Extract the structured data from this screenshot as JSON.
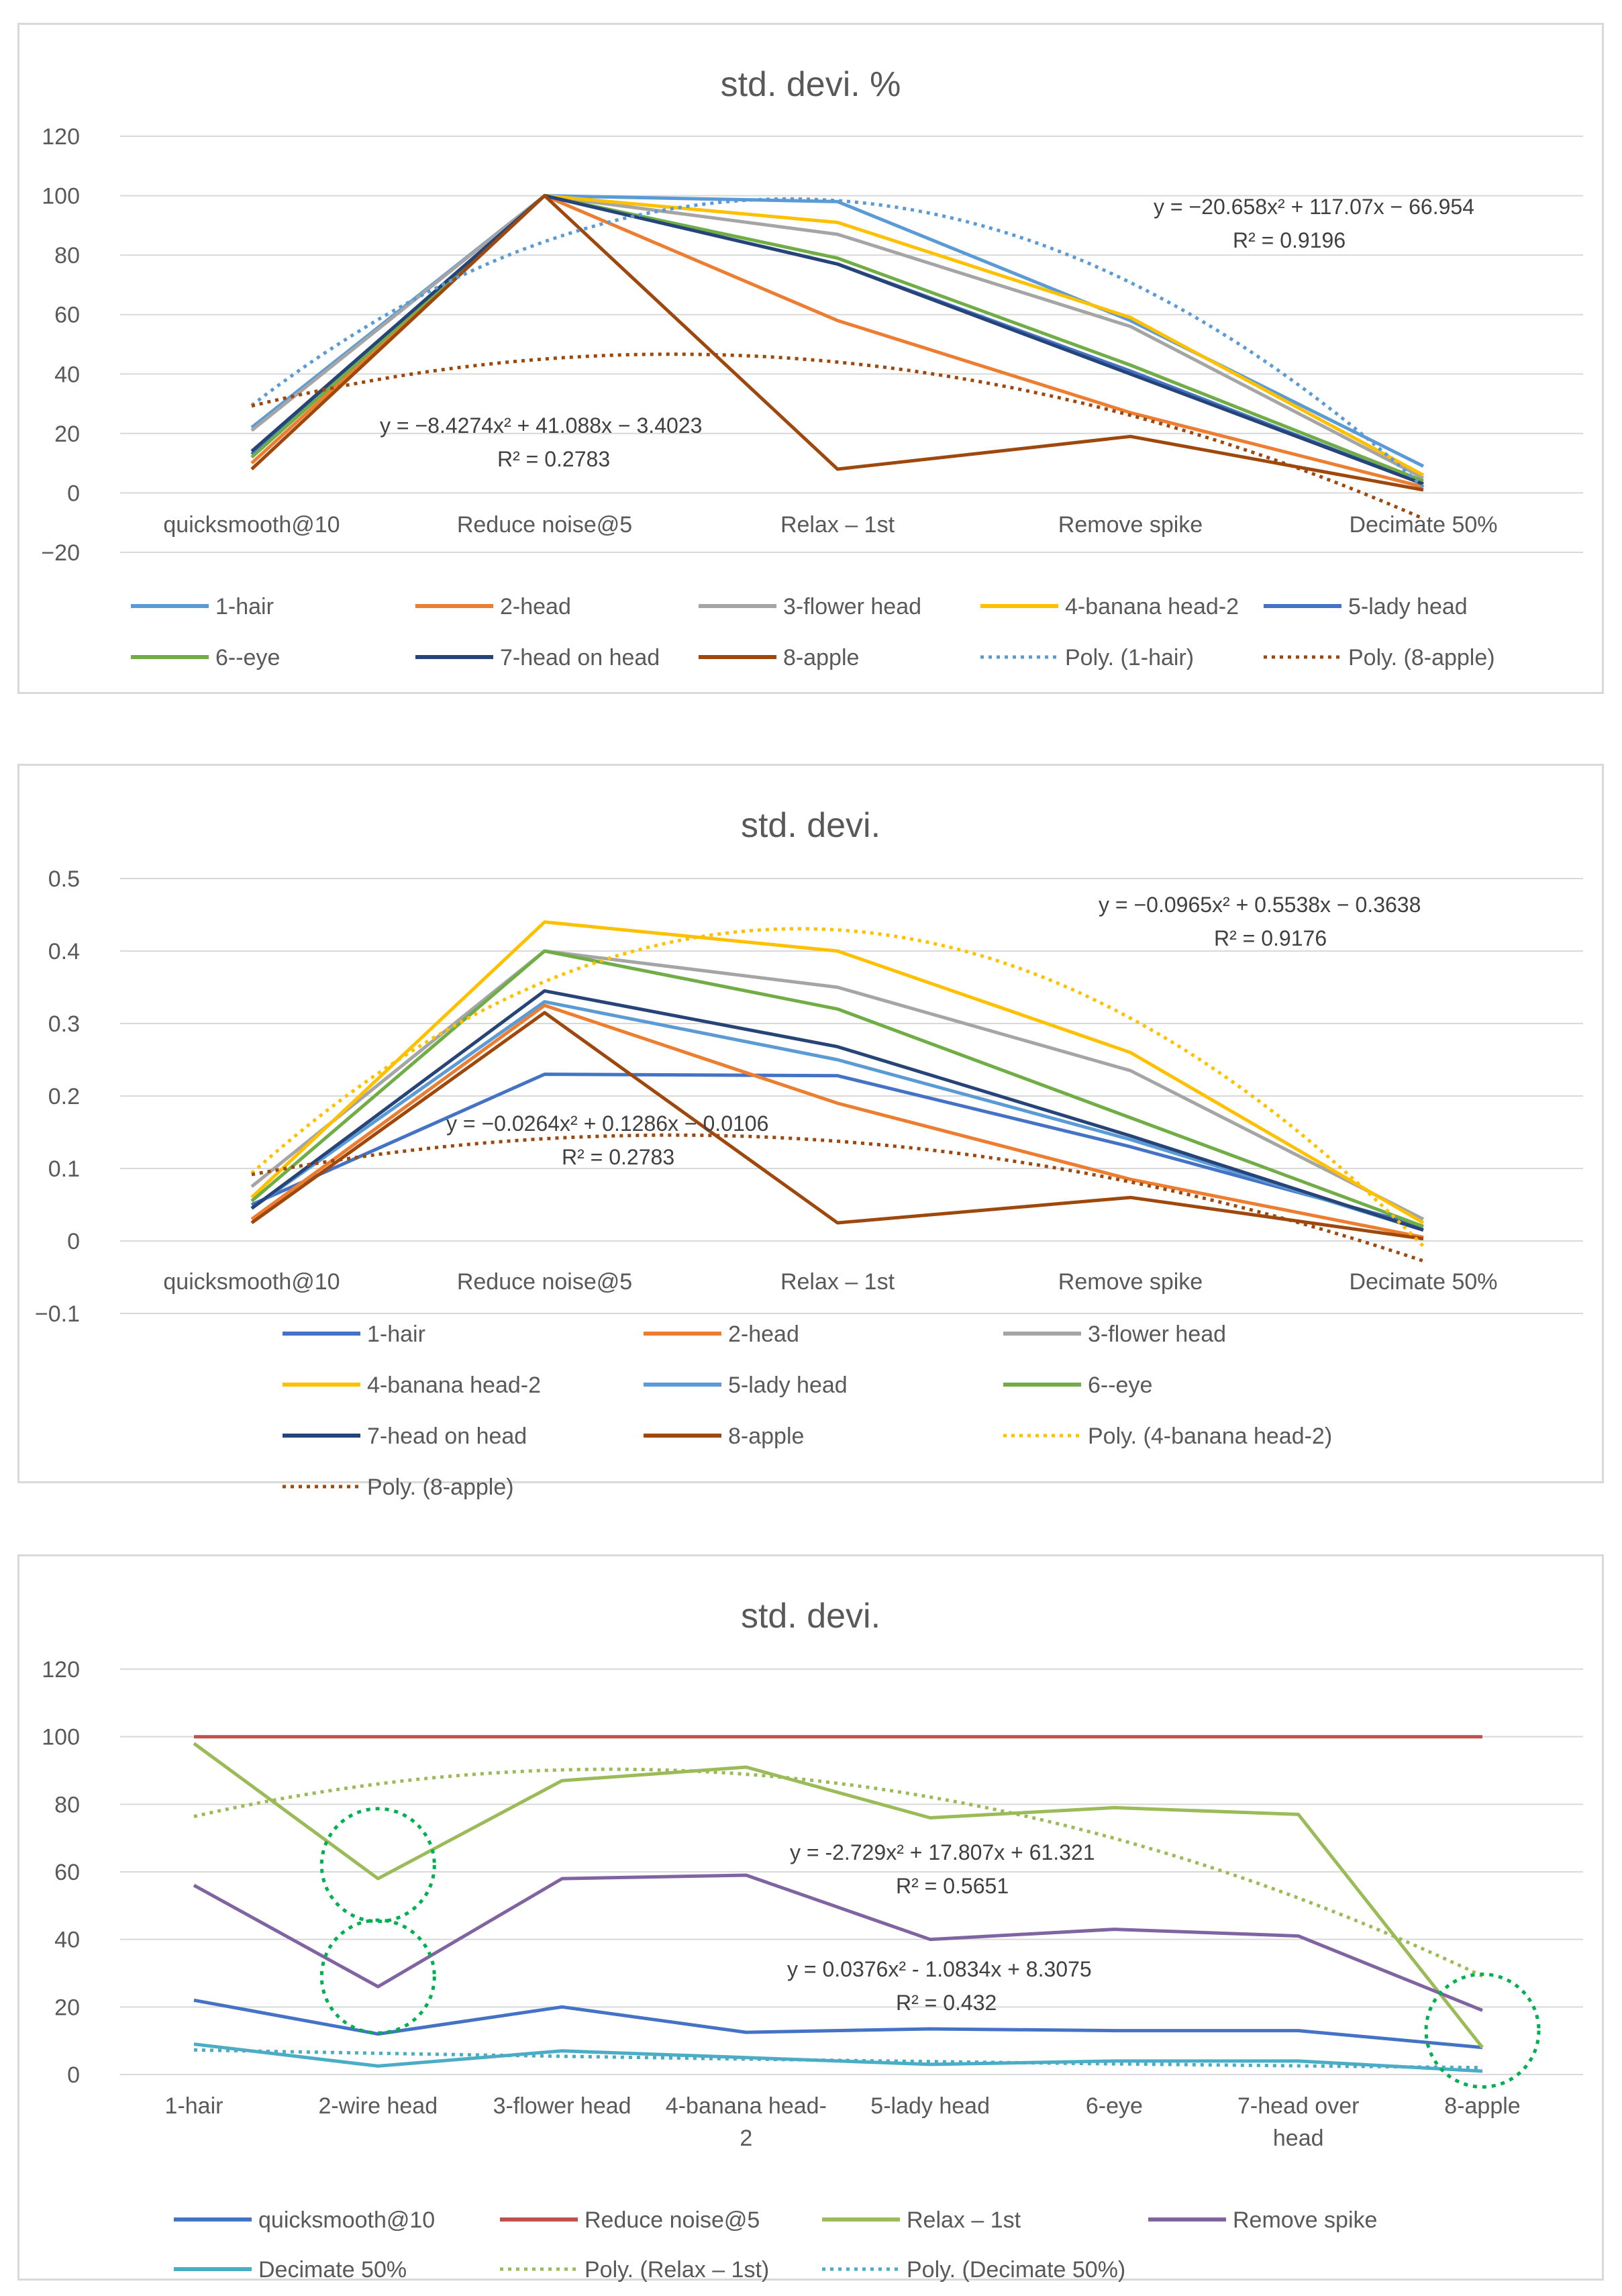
{
  "chart_data": [
    {
      "type": "line",
      "title": "std. devi. %",
      "categories": [
        "quicksmooth@10",
        "Reduce noise@5",
        "Relax – 1st",
        "Remove spike",
        "Decimate 50%"
      ],
      "ylim": [
        -20,
        120
      ],
      "yticks": [
        -20,
        0,
        20,
        40,
        60,
        80,
        100,
        120
      ],
      "grid": true,
      "series": [
        {
          "name": "1-hair",
          "color": "#5b9bd5",
          "values": [
            22,
            100,
            98,
            58,
            9
          ]
        },
        {
          "name": "2-head",
          "color": "#ed7d31",
          "values": [
            10,
            100,
            58,
            27,
            2
          ]
        },
        {
          "name": "3-flower head",
          "color": "#a5a5a5",
          "values": [
            21,
            100,
            87,
            56,
            5
          ]
        },
        {
          "name": "4-banana head-2",
          "color": "#ffc000",
          "values": [
            13,
            100,
            91,
            59,
            6
          ]
        },
        {
          "name": "5-lady head",
          "color": "#4472c4",
          "values": [
            13,
            100,
            77,
            41,
            3
          ]
        },
        {
          "name": "6--eye",
          "color": "#70ad47",
          "values": [
            12,
            100,
            79,
            43,
            4
          ]
        },
        {
          "name": "7-head on head",
          "color": "#264478",
          "values": [
            14,
            100,
            77,
            40,
            3
          ]
        },
        {
          "name": "8-apple",
          "color": "#9e480e",
          "values": [
            8,
            100,
            8,
            19,
            1
          ]
        }
      ],
      "trendlines": [
        {
          "name": "Poly. (1-hair)",
          "color": "#5b9bd5",
          "a": -20.658,
          "b": 117.07,
          "c": -66.954
        },
        {
          "name": "Poly. (8-apple)",
          "color": "#9e480e",
          "a": -8.4274,
          "b": 41.088,
          "c": -3.4023
        }
      ],
      "legend": [
        "1-hair",
        "2-head",
        "3-flower head",
        "4-banana head-2",
        "5-lady head",
        "6--eye",
        "7-head on head",
        "8-apple",
        "Poly. (1-hair)",
        "Poly. (8-apple)"
      ],
      "annotations": [
        {
          "eq": "y = −20.658x² + 117.07x − 66.954",
          "r2": "R² = 0.9196"
        },
        {
          "eq": "y = −8.4274x² + 41.088x − 3.4023",
          "r2": "R² = 0.2783"
        }
      ]
    },
    {
      "type": "line",
      "title": "std. devi.",
      "categories": [
        "quicksmooth@10",
        "Reduce noise@5",
        "Relax – 1st",
        "Remove spike",
        "Decimate 50%"
      ],
      "ylim": [
        -0.1,
        0.5
      ],
      "yticks": [
        -0.1,
        0,
        0.1,
        0.2,
        0.3,
        0.4,
        0.5
      ],
      "grid": true,
      "series": [
        {
          "name": "1-hair",
          "color": "#4472c4",
          "values": [
            0.05,
            0.23,
            0.228,
            0.13,
            0.02
          ]
        },
        {
          "name": "2-head",
          "color": "#ed7d31",
          "values": [
            0.03,
            0.325,
            0.19,
            0.085,
            0.005
          ]
        },
        {
          "name": "3-flower head",
          "color": "#a5a5a5",
          "values": [
            0.075,
            0.4,
            0.35,
            0.235,
            0.03
          ]
        },
        {
          "name": "4-banana head-2",
          "color": "#ffc000",
          "values": [
            0.06,
            0.44,
            0.4,
            0.26,
            0.025
          ]
        },
        {
          "name": "5-lady head",
          "color": "#5b9bd5",
          "values": [
            0.045,
            0.33,
            0.25,
            0.14,
            0.015
          ]
        },
        {
          "name": "6--eye",
          "color": "#70ad47",
          "values": [
            0.055,
            0.4,
            0.32,
            0.17,
            0.02
          ]
        },
        {
          "name": "7-head on head",
          "color": "#264478",
          "values": [
            0.045,
            0.345,
            0.268,
            0.145,
            0.015
          ]
        },
        {
          "name": "8-apple",
          "color": "#9e480e",
          "values": [
            0.025,
            0.315,
            0.025,
            0.06,
            0.003
          ]
        }
      ],
      "trendlines": [
        {
          "name": "Poly. (4-banana head-2)",
          "color": "#ffc000",
          "a": -0.0965,
          "b": 0.5538,
          "c": -0.3638
        },
        {
          "name": "Poly. (8-apple)",
          "color": "#9e480e",
          "a": -0.0264,
          "b": 0.1286,
          "c": -0.0106
        }
      ],
      "legend": [
        "1-hair",
        "2-head",
        "3-flower head",
        "4-banana head-2",
        "5-lady head",
        "6--eye",
        "7-head on head",
        "8-apple",
        "Poly. (4-banana head-2)",
        "Poly. (8-apple)"
      ],
      "annotations": [
        {
          "eq": "y = −0.0965x² + 0.5538x − 0.3638",
          "r2": "R² = 0.9176"
        },
        {
          "eq": "y = −0.0264x² + 0.1286x − 0.0106",
          "r2": "R² = 0.2783"
        }
      ]
    },
    {
      "type": "line",
      "title": "std. devi.",
      "categories": [
        "1-hair",
        "2-wire head",
        "3-flower head",
        "4-banana head-2",
        "5-lady head",
        "6-eye",
        "7-head over head",
        "8-apple"
      ],
      "category_lines": [
        [
          "1-hair"
        ],
        [
          "2-wire head"
        ],
        [
          "3-flower head"
        ],
        [
          "4-banana head-",
          "2"
        ],
        [
          "5-lady head"
        ],
        [
          "6-eye"
        ],
        [
          "7-head over",
          "head"
        ],
        [
          "8-apple"
        ]
      ],
      "ylim": [
        0,
        120
      ],
      "yticks": [
        0,
        20,
        40,
        60,
        80,
        100,
        120
      ],
      "grid": true,
      "series": [
        {
          "name": "quicksmooth@10",
          "color": "#4472c4",
          "values": [
            22,
            12,
            20,
            12.5,
            13.5,
            13,
            13,
            8
          ]
        },
        {
          "name": "Reduce noise@5",
          "color": "#c0504d",
          "values": [
            100,
            100,
            100,
            100,
            100,
            100,
            100,
            100
          ]
        },
        {
          "name": "Relax – 1st",
          "color": "#9bbb59",
          "values": [
            98,
            58,
            87,
            91,
            76,
            79,
            77,
            8
          ]
        },
        {
          "name": "Remove spike",
          "color": "#8064a2",
          "values": [
            56,
            26,
            58,
            59,
            40,
            43,
            41,
            19
          ]
        },
        {
          "name": "Decimate 50%",
          "color": "#4bacc6",
          "values": [
            9,
            2.5,
            7,
            5,
            3,
            4,
            4,
            1
          ]
        }
      ],
      "trendlines": [
        {
          "name": "Poly. (Relax – 1st)",
          "color": "#9bbb59",
          "a": -2.729,
          "b": 17.807,
          "c": 61.321
        },
        {
          "name": "Poly. (Decimate 50%)",
          "color": "#4bacc6",
          "a": 0.0376,
          "b": -1.0834,
          "c": 8.3075
        }
      ],
      "legend": [
        "quicksmooth@10",
        "Reduce noise@5",
        "Relax – 1st",
        "Remove spike",
        "Decimate 50%",
        "Poly. (Relax – 1st)",
        "Poly. (Decimate 50%)"
      ],
      "annotations": [
        {
          "eq": "y = -2.729x² + 17.807x + 61.321",
          "r2": "R² = 0.5651"
        },
        {
          "eq": "y = 0.0376x² - 1.0834x + 8.3075",
          "r2": "R² = 0.432"
        }
      ],
      "highlights": [
        {
          "category": "2-wire head",
          "value": 62
        },
        {
          "category": "2-wire head",
          "value": 29
        },
        {
          "category": "8-apple",
          "value": 13
        }
      ]
    }
  ]
}
